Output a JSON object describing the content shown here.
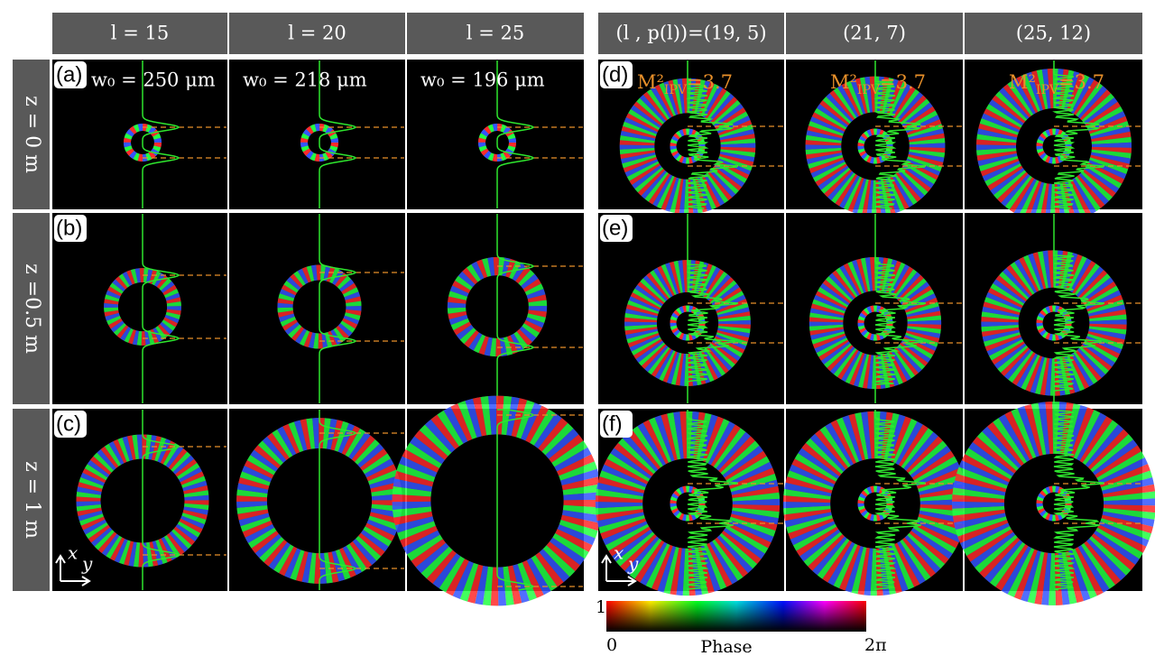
{
  "left_headers": [
    "l = 15",
    "l = 20",
    "l = 25"
  ],
  "right_headers": [
    "(l , p(l))=(19, 5)",
    "(21, 7)",
    "(25, 12)"
  ],
  "row_labels": [
    "z = 0 m",
    "z =0.5 m",
    "z = 1 m"
  ],
  "panel_labels": [
    "(a)",
    "(b)",
    "(c)",
    "(d)",
    "(e)",
    "(f)"
  ],
  "beam_waists": [
    "w₀ = 250 μm",
    "w₀ = 218 μm",
    "w₀ = 196 μm"
  ],
  "m2_labels": [
    {
      "base": "M²",
      "subscript": "IPV",
      "value": "=3.7"
    },
    {
      "base": "M²",
      "subscript": "IPV",
      "value": "=3.7"
    },
    {
      "base": "M²",
      "subscript": "IPV",
      "value": "=3.7"
    }
  ],
  "axes": {
    "x": "x",
    "y": "y"
  },
  "colorbar": {
    "top": "1",
    "bottom": "0",
    "title": "Phase",
    "right": "2π"
  }
}
